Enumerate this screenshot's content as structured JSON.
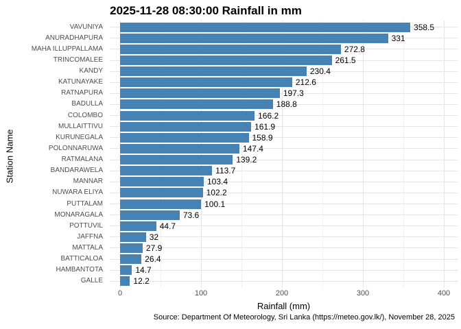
{
  "chart_data": {
    "type": "bar",
    "orientation": "horizontal",
    "title": "2025-11-28 08:30:00 Rainfall in mm",
    "xlabel": "Rainfall (mm)",
    "ylabel": "Station Name",
    "caption": "Source: Department Of Meteorology, Sri Lanka (https://meteo.gov.lk/), November 28, 2025",
    "categories": [
      "VAVUNIYA",
      "ANURADHAPURA",
      "MAHA ILLUPPALLAMA",
      "TRINCOMALEE",
      "KANDY",
      "KATUNAYAKE",
      "RATNAPURA",
      "BADULLA",
      "COLOMBO",
      "MULLAITTIVU",
      "KURUNEGALA",
      "POLONNARUWA",
      "RATMALANA",
      "BANDARAWELA",
      "MANNAR",
      "NUWARA ELIYA",
      "PUTTALAM",
      "MONARAGALA",
      "POTTUVIL",
      "JAFFNA",
      "MATTALA",
      "BATTICALOA",
      "HAMBANTOTA",
      "GALLE"
    ],
    "values": [
      358.5,
      331,
      272.8,
      261.5,
      230.4,
      212.6,
      197.3,
      188.8,
      166.2,
      161.9,
      158.9,
      147.4,
      139.2,
      113.7,
      103.4,
      102.2,
      100.1,
      73.6,
      44.7,
      32,
      27.9,
      26.4,
      14.7,
      12.2
    ],
    "value_labels": [
      "358.5",
      "331",
      "272.8",
      "261.5",
      "230.4",
      "212.6",
      "197.3",
      "188.8",
      "166.2",
      "161.9",
      "158.9",
      "147.4",
      "139.2",
      "113.7",
      "103.4",
      "102.2",
      "100.1",
      "73.6",
      "44.7",
      "32",
      "27.9",
      "26.4",
      "14.7",
      "12.2"
    ],
    "xlim": [
      0,
      400
    ],
    "x_ticks": [
      0,
      100,
      200,
      300,
      400
    ],
    "x_minor_ticks": [
      50,
      150,
      250,
      350
    ],
    "bar_color": "#4682B4",
    "grid": true,
    "legend": false,
    "colors": {
      "background": "#ffffff",
      "grid_major": "#e4e4e4",
      "grid_minor": "#f0f0f0",
      "tick_text": "#4d4d4d",
      "text": "#000000"
    }
  }
}
